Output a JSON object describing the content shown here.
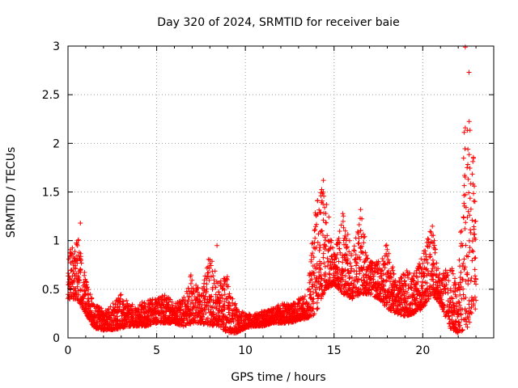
{
  "chart_data": {
    "type": "scatter",
    "title": "Day 320 of 2024, SRMTID for receiver baie",
    "xlabel": "GPS time / hours",
    "ylabel": "SRMTID / TECUs",
    "xlim": [
      0,
      24
    ],
    "ylim": [
      0,
      3
    ],
    "xticks": [
      0,
      5,
      10,
      15,
      20
    ],
    "yticks": [
      0,
      0.5,
      1,
      1.5,
      2,
      2.5,
      3
    ],
    "xtick_labels": [
      "0",
      "5",
      "10",
      "15",
      "20"
    ],
    "ytick_labels": [
      "0",
      "0.5",
      "1",
      "1.5",
      "2",
      "2.5",
      "3"
    ],
    "grid": true,
    "marker": "+",
    "series": [
      {
        "name": "SRMTID",
        "color": "#ff0000",
        "envelope_hours": [
          0,
          0.5,
          1,
          1.5,
          2,
          2.5,
          3,
          3.5,
          4,
          4.5,
          5,
          5.5,
          6,
          6.5,
          7,
          7.5,
          8,
          8.5,
          9,
          9.5,
          10,
          10.5,
          11,
          11.5,
          12,
          12.5,
          13,
          13.5,
          14,
          14.5,
          15,
          15.5,
          16,
          16.5,
          17,
          17.5,
          18,
          18.5,
          19,
          19.5,
          20,
          20.5,
          21,
          21.5,
          22,
          22.5,
          23
        ],
        "envelope_low": [
          0.4,
          0.4,
          0.25,
          0.1,
          0.08,
          0.08,
          0.1,
          0.12,
          0.12,
          0.12,
          0.15,
          0.15,
          0.15,
          0.12,
          0.15,
          0.15,
          0.12,
          0.12,
          0.05,
          0.05,
          0.1,
          0.12,
          0.12,
          0.15,
          0.15,
          0.15,
          0.18,
          0.2,
          0.25,
          0.5,
          0.55,
          0.45,
          0.4,
          0.45,
          0.45,
          0.4,
          0.3,
          0.25,
          0.22,
          0.25,
          0.3,
          0.45,
          0.35,
          0.1,
          0.05,
          0.1,
          0.3
        ],
        "envelope_high": [
          0.85,
          1.1,
          0.6,
          0.35,
          0.3,
          0.35,
          0.45,
          0.35,
          0.35,
          0.4,
          0.4,
          0.45,
          0.35,
          0.4,
          0.7,
          0.45,
          0.9,
          0.55,
          0.7,
          0.3,
          0.25,
          0.25,
          0.28,
          0.3,
          0.35,
          0.35,
          0.4,
          0.45,
          1.45,
          1.6,
          0.85,
          1.3,
          0.9,
          1.3,
          0.8,
          0.8,
          1.0,
          0.55,
          0.7,
          0.65,
          0.85,
          1.2,
          0.6,
          0.8,
          0.5,
          3.0,
          1.75
        ],
        "peaks": [
          {
            "x": 0.7,
            "y": 1.18
          },
          {
            "x": 8.4,
            "y": 0.95
          },
          {
            "x": 14.4,
            "y": 1.62
          },
          {
            "x": 16.5,
            "y": 1.32
          },
          {
            "x": 22.4,
            "y": 2.99
          },
          {
            "x": 22.4,
            "y": 2.16
          },
          {
            "x": 22.5,
            "y": 1.75
          }
        ]
      }
    ]
  }
}
